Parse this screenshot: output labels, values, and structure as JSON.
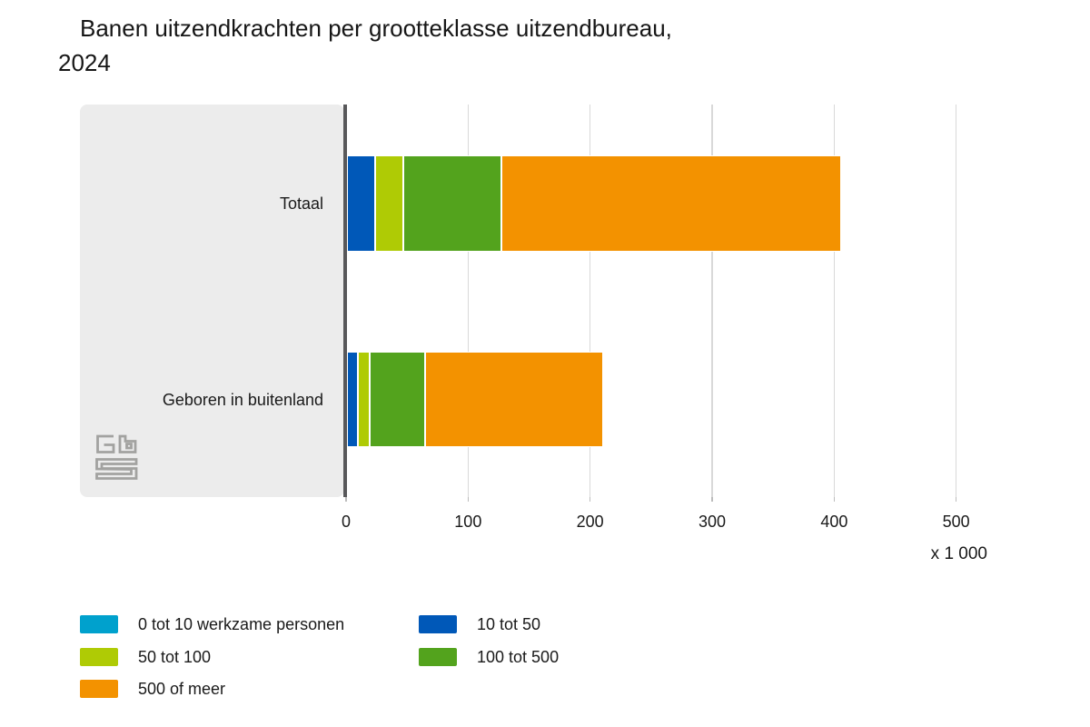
{
  "title": {
    "line1": "Banen uitzendkrachten per grootteklasse uitzendbureau,",
    "line2": "2024"
  },
  "chart_data": {
    "type": "stacked_bar_horizontal",
    "title": "Banen uitzendkrachten per grootteklasse uitzendbureau, 2024",
    "unit_label": "x 1 000",
    "categories": [
      "Totaal",
      "Geboren in buitenland"
    ],
    "series": [
      {
        "name": "0 tot 10 werkzame personen",
        "color": "#00a1cd",
        "values": [
          1,
          0.5
        ]
      },
      {
        "name": "10 tot 50",
        "color": "#0058b8",
        "values": [
          23,
          9
        ]
      },
      {
        "name": "50 tot 100",
        "color": "#afcb05",
        "values": [
          23,
          10
        ]
      },
      {
        "name": "100 tot 500",
        "color": "#53a31d",
        "values": [
          80,
          45
        ]
      },
      {
        "name": "500 of meer",
        "color": "#f39200",
        "values": [
          279,
          146
        ]
      }
    ],
    "x_axis": {
      "min": 0,
      "max": 535,
      "ticks": [
        0,
        100,
        200,
        300,
        400,
        500
      ]
    },
    "legend": {
      "position": "bottom",
      "columns": [
        [
          0,
          2,
          4
        ],
        [
          1,
          3
        ]
      ]
    },
    "grid": true
  },
  "branding": {
    "logo_name": "cbs-logo"
  },
  "colors": {
    "axis": "#58585a",
    "gridline": "#d9d9d9",
    "panel": "#ececec",
    "text": "#1a1a1a",
    "logo": "#a2a2a0"
  }
}
